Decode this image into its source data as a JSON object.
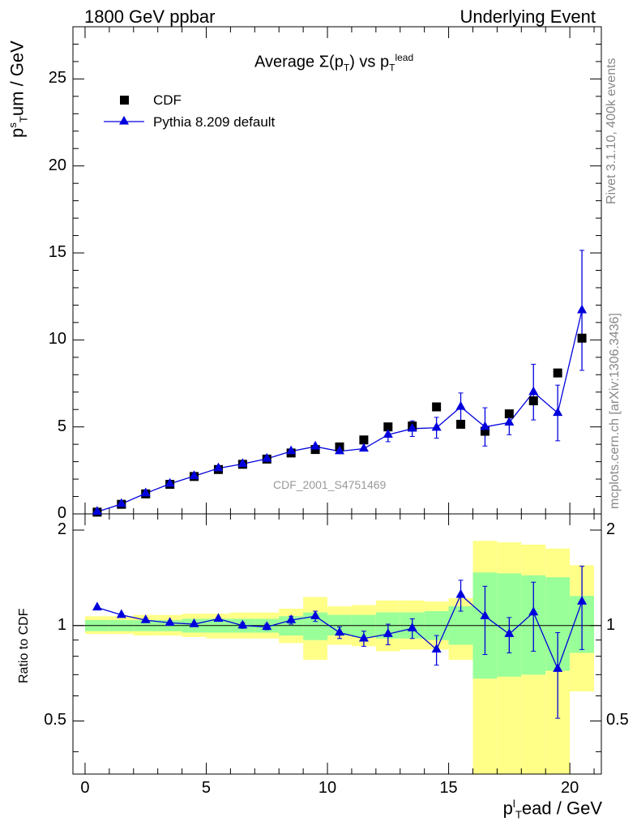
{
  "header": {
    "left": "1800 GeV ppbar",
    "right": "Underlying Event"
  },
  "side_labels": {
    "rivet": "Rivet 3.1.10,  400k events",
    "mcplots": "mcplots.cern.ch [arXiv:1306.3436]"
  },
  "colors": {
    "data": "#000000",
    "mc": "#0000dd",
    "band_outer": "#ffff88",
    "band_inner": "#99ff99"
  },
  "chart_data": [
    {
      "type": "scatter",
      "title": "Average Σ(p_T) vs p_T^lead",
      "title_parts": {
        "main": "Average Σ(p",
        "sub1": "T",
        "mid": ") vs p",
        "sub2": "T",
        "sup2": "lead"
      },
      "ylabel": "p_T^s um / GeV",
      "ylabel_parts": {
        "p": "p",
        "sup": "s",
        "sub": "T",
        "rest": "um / GeV"
      },
      "watermark": "CDF_2001_S4751469",
      "xlim": [
        -0.5,
        21.3
      ],
      "ylim": [
        0,
        28
      ],
      "yticks": [
        0,
        5,
        10,
        15,
        20,
        25
      ],
      "ytick_labels": [
        "0",
        "5",
        "10",
        "15",
        "20",
        "25"
      ],
      "legend_position": "top-left",
      "series": [
        {
          "name": "CDF",
          "marker": "square",
          "x": [
            0.5,
            1.5,
            2.5,
            3.5,
            4.5,
            5.5,
            6.5,
            7.5,
            8.5,
            9.5,
            10.5,
            11.5,
            12.5,
            13.5,
            14.5,
            15.5,
            16.5,
            17.5,
            18.5,
            19.5,
            20.5
          ],
          "y": [
            0.1,
            0.55,
            1.15,
            1.7,
            2.15,
            2.55,
            2.85,
            3.15,
            3.5,
            3.7,
            3.85,
            4.25,
            5.0,
            5.05,
            6.15,
            5.15,
            4.75,
            5.75,
            6.5,
            8.1,
            10.1
          ]
        },
        {
          "name": "Pythia 8.209 default",
          "marker": "triangle",
          "x": [
            0.5,
            1.5,
            2.5,
            3.5,
            4.5,
            5.5,
            6.5,
            7.5,
            8.5,
            9.5,
            10.5,
            11.5,
            12.5,
            13.5,
            14.5,
            15.5,
            16.5,
            17.5,
            18.5,
            19.5,
            20.5
          ],
          "y": [
            0.12,
            0.57,
            1.18,
            1.73,
            2.17,
            2.62,
            2.87,
            3.17,
            3.6,
            3.87,
            3.6,
            3.75,
            4.55,
            4.9,
            4.95,
            6.15,
            5.0,
            5.25,
            7.0,
            5.8,
            11.7
          ],
          "yerr": [
            0.03,
            0.04,
            0.05,
            0.06,
            0.07,
            0.08,
            0.09,
            0.1,
            0.12,
            0.15,
            0.2,
            0.25,
            0.4,
            0.45,
            0.6,
            0.8,
            1.1,
            0.7,
            1.6,
            1.6,
            3.45
          ]
        }
      ]
    },
    {
      "type": "scatter",
      "ylabel": "Ratio to CDF",
      "xlabel": "p_T^l ead / GeV",
      "xlabel_parts": {
        "p": "p",
        "sup": "l",
        "sub": "T",
        "rest": "ead / GeV"
      },
      "xlim": [
        -0.5,
        21.3
      ],
      "ylim": [
        0.34,
        2.25
      ],
      "yticks": [
        0.5,
        1,
        2
      ],
      "ytick_labels": [
        "0.5",
        "1",
        "2"
      ],
      "xticks": [
        0,
        5,
        10,
        15,
        20
      ],
      "xtick_labels": [
        "0",
        "5",
        "10",
        "15",
        "20"
      ],
      "reference_line": 1,
      "bands": {
        "x_edges": [
          0,
          1,
          2,
          3,
          4,
          5,
          6,
          7,
          8,
          9,
          10,
          11,
          12,
          13,
          14,
          15,
          16,
          17,
          18,
          19,
          20,
          21
        ],
        "outer_lo": [
          0.94,
          0.94,
          0.93,
          0.93,
          0.92,
          0.91,
          0.91,
          0.91,
          0.88,
          0.78,
          0.87,
          0.86,
          0.83,
          0.84,
          0.84,
          0.78,
          0.33,
          0.33,
          0.33,
          0.33,
          0.62
        ],
        "outer_hi": [
          1.07,
          1.07,
          1.08,
          1.08,
          1.09,
          1.09,
          1.1,
          1.1,
          1.13,
          1.23,
          1.15,
          1.16,
          1.2,
          1.2,
          1.19,
          1.22,
          1.85,
          1.83,
          1.8,
          1.75,
          1.55
        ],
        "inner_lo": [
          0.96,
          0.96,
          0.96,
          0.96,
          0.95,
          0.95,
          0.95,
          0.95,
          0.93,
          0.9,
          0.93,
          0.92,
          0.91,
          0.91,
          0.9,
          0.87,
          0.68,
          0.69,
          0.7,
          0.72,
          0.82
        ],
        "inner_hi": [
          1.04,
          1.04,
          1.04,
          1.04,
          1.05,
          1.05,
          1.05,
          1.05,
          1.07,
          1.1,
          1.08,
          1.08,
          1.1,
          1.1,
          1.11,
          1.15,
          1.47,
          1.46,
          1.44,
          1.42,
          1.24
        ]
      },
      "series": [
        {
          "name": "Pythia 8.209 default",
          "marker": "triangle",
          "x": [
            0.5,
            1.5,
            2.5,
            3.5,
            4.5,
            5.5,
            6.5,
            7.5,
            8.5,
            9.5,
            10.5,
            11.5,
            12.5,
            13.5,
            14.5,
            15.5,
            16.5,
            17.5,
            18.5,
            19.5,
            20.5
          ],
          "y": [
            1.14,
            1.08,
            1.04,
            1.02,
            1.01,
            1.05,
            1.0,
            0.99,
            1.04,
            1.07,
            0.95,
            0.91,
            0.94,
            0.98,
            0.84,
            1.25,
            1.07,
            0.94,
            1.1,
            0.73,
            1.19
          ],
          "yerr": [
            0.01,
            0.01,
            0.01,
            0.01,
            0.01,
            0.01,
            0.02,
            0.02,
            0.03,
            0.04,
            0.04,
            0.05,
            0.07,
            0.07,
            0.09,
            0.14,
            0.26,
            0.12,
            0.27,
            0.22,
            0.35
          ]
        }
      ]
    }
  ]
}
